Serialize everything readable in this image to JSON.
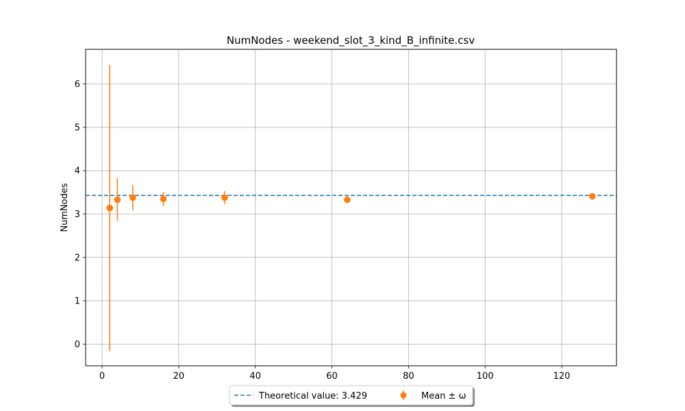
{
  "chart_data": {
    "type": "scatter",
    "title": "NumNodes - weekend_slot_3_kind_B_infinite.csv",
    "xlabel": "",
    "ylabel": "NumNodes",
    "xlim": [
      -4.3,
      134.3
    ],
    "ylim": [
      -0.5,
      6.8
    ],
    "x_ticks": [
      0,
      20,
      40,
      60,
      80,
      100,
      120
    ],
    "y_ticks": [
      0,
      1,
      2,
      3,
      4,
      5,
      6
    ],
    "grid": true,
    "theoretical": {
      "label": "Theoretical value: 3.429",
      "value": 3.429,
      "color": "#1f77b4",
      "style": "dashed"
    },
    "series": [
      {
        "name": "Mean ± ω",
        "color": "#ff7f0e",
        "x": [
          2,
          4,
          8,
          16,
          32,
          64,
          128
        ],
        "y": [
          3.14,
          3.33,
          3.38,
          3.35,
          3.38,
          3.33,
          3.41
        ],
        "err": [
          3.3,
          0.49,
          0.29,
          0.16,
          0.15,
          0.07,
          0.07
        ]
      }
    ],
    "legend": "bottom-center"
  }
}
